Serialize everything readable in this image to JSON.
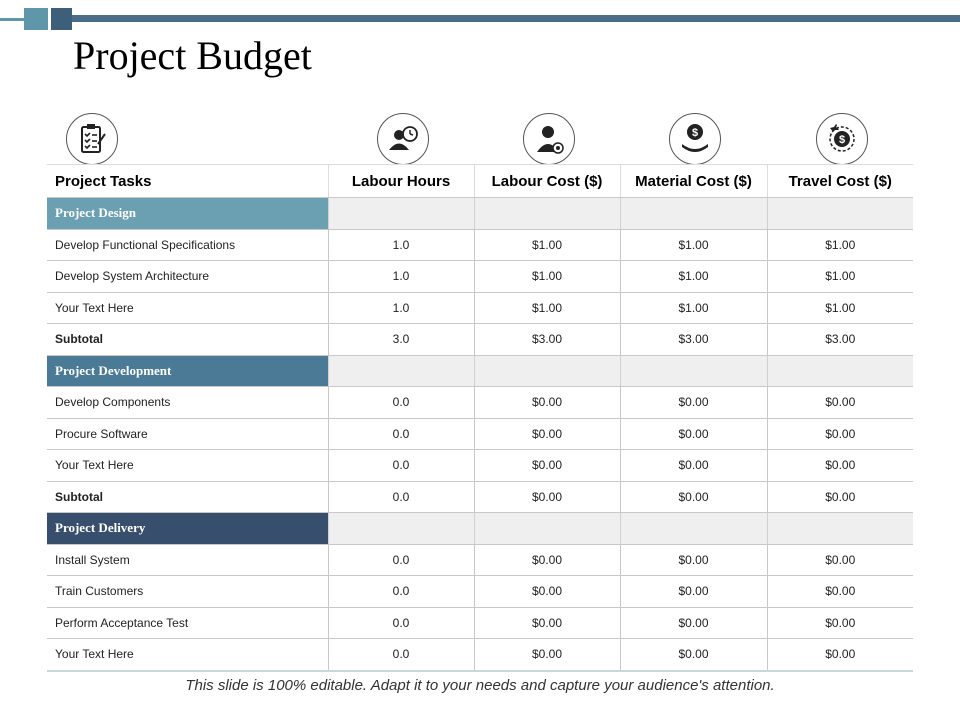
{
  "slide": {
    "title": "Project Budget",
    "footer": "This slide is 100% editable. Adapt it to your needs and capture your audience's attention."
  },
  "colors": {
    "bar_light": "#5f97aa",
    "bar_dark": "#4a6d88",
    "section_design": "#6aa0b1",
    "section_development": "#4a7a96",
    "section_delivery": "#374f6d"
  },
  "icons": [
    "clipboard-checklist-icon",
    "person-clock-icon",
    "person-coin-icon",
    "hand-dollar-icon",
    "plane-dollar-icon"
  ],
  "table": {
    "headers": [
      "Project Tasks",
      "Labour Hours",
      "Labour Cost ($)",
      "Material Cost ($)",
      "Travel Cost ($)"
    ],
    "sections": [
      {
        "name": "Project Design",
        "rows": [
          {
            "task": "Develop Functional Specifications",
            "hours": "1.0",
            "labour": "$1.00",
            "material": "$1.00",
            "travel": "$1.00"
          },
          {
            "task": "Develop System Architecture",
            "hours": "1.0",
            "labour": "$1.00",
            "material": "$1.00",
            "travel": "$1.00"
          },
          {
            "task": "Your Text Here",
            "hours": "1.0",
            "labour": "$1.00",
            "material": "$1.00",
            "travel": "$1.00"
          }
        ],
        "subtotal": {
          "label": "Subtotal",
          "hours": "3.0",
          "labour": "$3.00",
          "material": "$3.00",
          "travel": "$3.00"
        }
      },
      {
        "name": "Project Development",
        "rows": [
          {
            "task": "Develop Components",
            "hours": "0.0",
            "labour": "$0.00",
            "material": "$0.00",
            "travel": "$0.00"
          },
          {
            "task": "Procure Software",
            "hours": "0.0",
            "labour": "$0.00",
            "material": "$0.00",
            "travel": "$0.00"
          },
          {
            "task": "Your Text Here",
            "hours": "0.0",
            "labour": "$0.00",
            "material": "$0.00",
            "travel": "$0.00"
          }
        ],
        "subtotal": {
          "label": "Subtotal",
          "hours": "0.0",
          "labour": "$0.00",
          "material": "$0.00",
          "travel": "$0.00"
        }
      },
      {
        "name": "Project Delivery",
        "rows": [
          {
            "task": "Install System",
            "hours": "0.0",
            "labour": "$0.00",
            "material": "$0.00",
            "travel": "$0.00"
          },
          {
            "task": "Train Customers",
            "hours": "0.0",
            "labour": "$0.00",
            "material": "$0.00",
            "travel": "$0.00"
          },
          {
            "task": "Perform Acceptance Test",
            "hours": "0.0",
            "labour": "$0.00",
            "material": "$0.00",
            "travel": "$0.00"
          },
          {
            "task": "Your Text Here",
            "hours": "0.0",
            "labour": "$0.00",
            "material": "$0.00",
            "travel": "$0.00"
          }
        ]
      }
    ]
  }
}
